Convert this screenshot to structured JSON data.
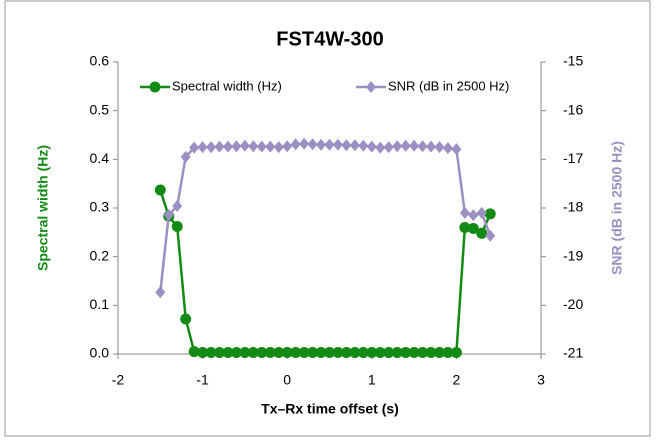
{
  "chart_data": {
    "type": "line",
    "title": "FST4W-300",
    "x_label": "Tx–Rx time offset (s)",
    "y_label": "Spectral width (Hz)",
    "y2_label": "SNR (dB in 2500 Hz)",
    "x": [
      -1.5,
      -1.4,
      -1.3,
      -1.2,
      -1.1,
      -1.0,
      -0.9,
      -0.8,
      -0.7,
      -0.6,
      -0.5,
      -0.4,
      -0.3,
      -0.2,
      -0.1,
      0.0,
      0.1,
      0.2,
      0.3,
      0.4,
      0.5,
      0.6,
      0.7,
      0.8,
      0.9,
      1.0,
      1.1,
      1.2,
      1.3,
      1.4,
      1.5,
      1.6,
      1.7,
      1.8,
      1.9,
      2.0,
      2.1,
      2.2,
      2.3,
      2.4
    ],
    "series": [
      {
        "name": "Spectral width (Hz)",
        "color": "#138a14",
        "marker": "circle",
        "axis": "y",
        "values": [
          0.337,
          0.283,
          0.262,
          0.072,
          0.005,
          0.003,
          0.003,
          0.003,
          0.003,
          0.003,
          0.003,
          0.003,
          0.003,
          0.003,
          0.003,
          0.003,
          0.003,
          0.003,
          0.003,
          0.003,
          0.003,
          0.003,
          0.003,
          0.003,
          0.003,
          0.003,
          0.003,
          0.003,
          0.003,
          0.003,
          0.003,
          0.003,
          0.003,
          0.003,
          0.003,
          0.003,
          0.26,
          0.258,
          0.248,
          0.288
        ]
      },
      {
        "name": "SNR (dB in 2500 Hz)",
        "color": "#9c8fc4",
        "marker": "diamond",
        "axis": "y2",
        "values": [
          -19.73,
          -18.14,
          -17.96,
          -16.95,
          -16.76,
          -16.75,
          -16.75,
          -16.74,
          -16.74,
          -16.73,
          -16.72,
          -16.73,
          -16.74,
          -16.74,
          -16.75,
          -16.73,
          -16.69,
          -16.68,
          -16.69,
          -16.7,
          -16.7,
          -16.7,
          -16.71,
          -16.71,
          -16.72,
          -16.74,
          -16.76,
          -16.75,
          -16.73,
          -16.72,
          -16.72,
          -16.73,
          -16.74,
          -16.75,
          -16.77,
          -16.79,
          -18.1,
          -18.15,
          -18.1,
          -18.57
        ]
      }
    ],
    "xlim": [
      -2,
      3
    ],
    "xticks": [
      -2,
      -1,
      0,
      1,
      2,
      3
    ],
    "ylim": [
      0,
      0.6
    ],
    "yticks": [
      {
        "value": 0,
        "label": "0.0"
      },
      0.1,
      0.2,
      0.3,
      0.4,
      0.5,
      0.6
    ],
    "y2lim": [
      -21,
      -15
    ],
    "y2ticks": [
      -21,
      -20,
      -19,
      -18,
      -17,
      -16,
      -15
    ],
    "legend": "top"
  }
}
